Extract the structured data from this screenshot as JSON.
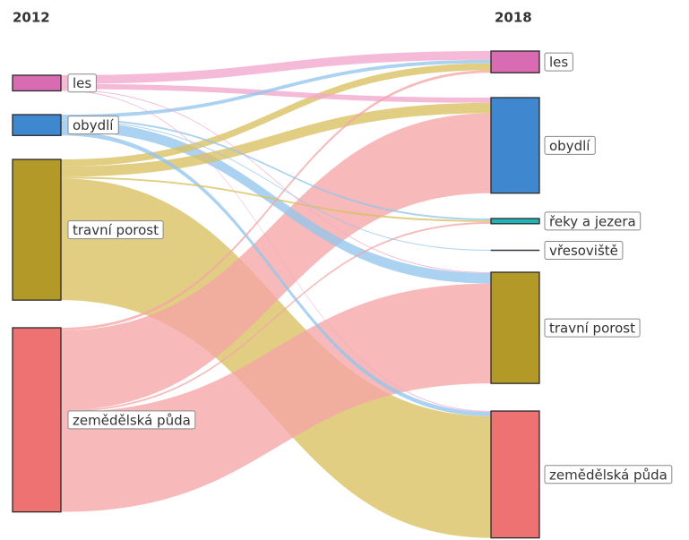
{
  "chart_data": {
    "type": "sankey",
    "columns": [
      "2012",
      "2018"
    ],
    "left_nodes": [
      {
        "name": "les",
        "color": "#d96bb3"
      },
      {
        "name": "obydlí",
        "color": "#3f87cf"
      },
      {
        "name": "travní porost",
        "color": "#b39a28"
      },
      {
        "name": "zemědělská půda",
        "color": "#ef7272"
      }
    ],
    "right_nodes": [
      {
        "name": "les",
        "color": "#d96bb3"
      },
      {
        "name": "obydlí",
        "color": "#3f87cf"
      },
      {
        "name": "řeky a jezera",
        "color": "#1fb5b8"
      },
      {
        "name": "vřesoviště",
        "color": "#3a4a6a"
      },
      {
        "name": "travní porost",
        "color": "#b39a28"
      },
      {
        "name": "zemědělská půda",
        "color": "#ef7272"
      }
    ],
    "link_colors": [
      "#f2a6cc",
      "#93c5ec",
      "#d8c060",
      "#f5a5a5"
    ],
    "links": [
      {
        "source": 0,
        "target": 0,
        "value": 10
      },
      {
        "source": 0,
        "target": 1,
        "value": 6
      },
      {
        "source": 0,
        "target": 4,
        "value": 1
      },
      {
        "source": 0,
        "target": 5,
        "value": 1
      },
      {
        "source": 1,
        "target": 0,
        "value": 4
      },
      {
        "source": 1,
        "target": 2,
        "value": 2
      },
      {
        "source": 1,
        "target": 3,
        "value": 1
      },
      {
        "source": 1,
        "target": 4,
        "value": 12
      },
      {
        "source": 1,
        "target": 5,
        "value": 5
      },
      {
        "source": 2,
        "target": 0,
        "value": 8
      },
      {
        "source": 2,
        "target": 1,
        "value": 12
      },
      {
        "source": 2,
        "target": 2,
        "value": 2
      },
      {
        "source": 2,
        "target": 5,
        "value": 140
      },
      {
        "source": 3,
        "target": 0,
        "value": 3
      },
      {
        "source": 3,
        "target": 1,
        "value": 92
      },
      {
        "source": 3,
        "target": 2,
        "value": 2
      },
      {
        "source": 3,
        "target": 4,
        "value": 115
      }
    ]
  }
}
